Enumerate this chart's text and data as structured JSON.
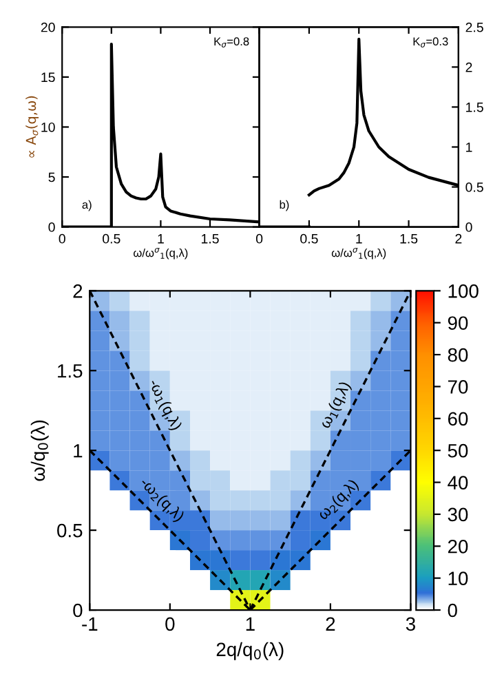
{
  "chart_data": [
    {
      "type": "line",
      "xlabel": "ω/ω$^{σ}$$_{1}$(q,λ)",
      "ylabel": "∝ A$_{σ}$(q,ω)",
      "annotations": [
        "K$_{σ}$=0.8",
        "a)"
      ],
      "xlim": [
        0,
        2
      ],
      "xticks": [
        0,
        0.5,
        1,
        1.5,
        {
          "value": 2,
          "label": null
        }
      ],
      "ylim": [
        0,
        20
      ],
      "yticks": [
        0,
        5,
        10,
        15,
        20
      ],
      "grid": false,
      "series": [
        {
          "color": "#000000",
          "x": [
            0,
            0.5,
            0.5,
            0.52,
            0.55,
            0.6,
            0.65,
            0.7,
            0.75,
            0.8,
            0.85,
            0.9,
            0.95,
            0.98,
            1.0,
            1.02,
            1.05,
            1.1,
            1.2,
            1.3,
            1.5,
            1.7,
            2.0
          ],
          "values": [
            0,
            0,
            18.3,
            10,
            6,
            4.3,
            3.5,
            3.1,
            2.9,
            2.8,
            2.8,
            3.1,
            3.8,
            5,
            7.3,
            3,
            2,
            1.6,
            1.3,
            1.1,
            0.8,
            0.7,
            0.5
          ]
        }
      ]
    },
    {
      "type": "line",
      "xlabel": "ω/ω$^{σ}$$_{1}$(q,λ)",
      "annotations": [
        "K$_{σ}$=0.3",
        "b)"
      ],
      "xlim": [
        0,
        2
      ],
      "xticks": [
        0,
        0.5,
        1,
        1.5,
        2
      ],
      "y2lim": [
        0,
        2.5
      ],
      "y2ticks": [
        0,
        0.5,
        1,
        1.5,
        2,
        2.5
      ],
      "grid": false,
      "series": [
        {
          "color": "#000000",
          "axis": "y2",
          "x": [
            0,
            0.5
          ],
          "values": [
            0,
            0
          ]
        },
        {
          "color": "#000000",
          "axis": "y2",
          "x": [
            0.5,
            0.55,
            0.6,
            0.7,
            0.8,
            0.85,
            0.9,
            0.95,
            0.98,
            1.0,
            1.02,
            1.05,
            1.1,
            1.2,
            1.3,
            1.5,
            1.7,
            2.0
          ],
          "values": [
            0.4,
            0.45,
            0.48,
            0.52,
            0.6,
            0.68,
            0.8,
            1.0,
            1.3,
            2.35,
            1.7,
            1.4,
            1.2,
            1.0,
            0.88,
            0.72,
            0.62,
            0.52
          ]
        }
      ]
    },
    {
      "type": "heatmap",
      "xlabel": "2q/q$_{0}$(λ)",
      "ylabel": "ω/q$_{0}$(λ)",
      "xlim": [
        -1,
        3
      ],
      "xticks": [
        -1,
        0,
        1,
        2,
        3
      ],
      "ylim": [
        0,
        2
      ],
      "yticks": [
        0,
        0.5,
        1,
        1.5,
        2
      ],
      "x": [
        -0.875,
        -0.625,
        -0.375,
        -0.125,
        0.125,
        0.375,
        0.625,
        0.875,
        1.125,
        1.375,
        1.625,
        1.875,
        2.125,
        2.375,
        2.625,
        2.875
      ],
      "clim": [
        0,
        100
      ],
      "cticks": [
        0,
        10,
        20,
        30,
        40,
        50,
        60,
        70,
        80,
        90,
        100
      ],
      "cells": [
        [
          3,
          2,
          1,
          1,
          1,
          1,
          1,
          1,
          1,
          1,
          1,
          1,
          1,
          1,
          2,
          3
        ],
        [
          4,
          3,
          2,
          1,
          1,
          1,
          1,
          1,
          1,
          1,
          1,
          1,
          1,
          2,
          3,
          4
        ],
        [
          4,
          3,
          2,
          1,
          1,
          1,
          1,
          1,
          1,
          1,
          1,
          1,
          1,
          2,
          3,
          4
        ],
        [
          4,
          4,
          2,
          1,
          1,
          1,
          1,
          1,
          1,
          1,
          1,
          1,
          1,
          2,
          4,
          4
        ],
        [
          4,
          4,
          3,
          2,
          1,
          1,
          1,
          1,
          1,
          1,
          1,
          1,
          2,
          3,
          4,
          4
        ],
        [
          4,
          4,
          4,
          2,
          1,
          1,
          1,
          1,
          1,
          1,
          1,
          1,
          2,
          4,
          4,
          4
        ],
        [
          4,
          4,
          4,
          3,
          2,
          1,
          1,
          1,
          1,
          1,
          1,
          2,
          3,
          4,
          4,
          4
        ],
        [
          4,
          4,
          4,
          4,
          2,
          1,
          1,
          1,
          1,
          1,
          1,
          2,
          4,
          4,
          4,
          4
        ],
        [
          5,
          4,
          4,
          4,
          3,
          2,
          1,
          1,
          1,
          1,
          2,
          3,
          4,
          4,
          4,
          5
        ],
        [
          null,
          5,
          4,
          4,
          4,
          2,
          2,
          1,
          1,
          2,
          2,
          4,
          4,
          4,
          5,
          null
        ],
        [
          null,
          null,
          5,
          4,
          4,
          3,
          2,
          2,
          2,
          2,
          3,
          4,
          4,
          5,
          null,
          null
        ],
        [
          null,
          null,
          null,
          5,
          5,
          5,
          3,
          3,
          3,
          3,
          5,
          5,
          5,
          null,
          null,
          null
        ],
        [
          null,
          null,
          null,
          null,
          6,
          5,
          4,
          4,
          4,
          4,
          5,
          6,
          null,
          null,
          null,
          null
        ],
        [
          null,
          null,
          null,
          null,
          null,
          6,
          6,
          5,
          5,
          6,
          6,
          null,
          null,
          null,
          null,
          null
        ],
        [
          null,
          null,
          null,
          null,
          null,
          null,
          8,
          12,
          12,
          8,
          null,
          null,
          null,
          null,
          null,
          null
        ],
        [
          null,
          null,
          null,
          null,
          null,
          null,
          null,
          35,
          35,
          null,
          null,
          null,
          null,
          null,
          null,
          null
        ]
      ],
      "series": [
        {
          "type": "line",
          "name": "-ω$_{1}$(q,λ)",
          "color": "#000000",
          "line_style": "dashed",
          "x": [
            -1,
            1
          ],
          "values": [
            2,
            0
          ]
        },
        {
          "type": "line",
          "name": "ω$_{1}$(q,λ)",
          "color": "#000000",
          "line_style": "dashed",
          "x": [
            1,
            3
          ],
          "values": [
            0,
            2
          ]
        },
        {
          "type": "line",
          "name": "-ω$_{2}$(q,λ)",
          "color": "#000000",
          "line_style": "dashed",
          "x": [
            -1,
            1
          ],
          "values": [
            1,
            0
          ]
        },
        {
          "type": "line",
          "name": "ω$_{2}$(q,λ)",
          "color": "#000000",
          "line_style": "dashed",
          "x": [
            1,
            3
          ],
          "values": [
            0,
            1
          ]
        }
      ]
    }
  ]
}
